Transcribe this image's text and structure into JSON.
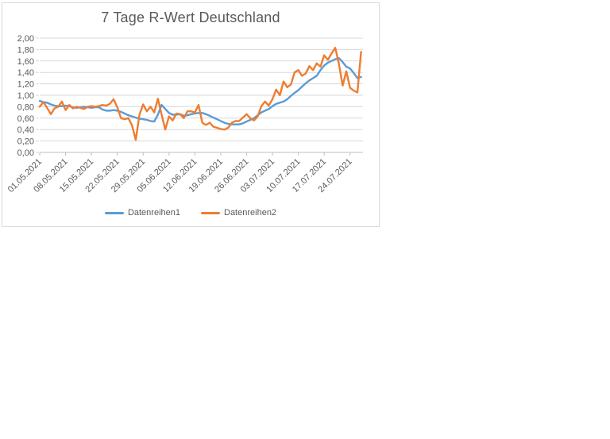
{
  "chart_data": {
    "type": "line",
    "title": "7 Tage R-Wert Deutschland",
    "x_start": "01.05.2021",
    "x_end": "27.07.2021",
    "x_interval": "daily",
    "x_tick_labels": [
      "01.05.2021",
      "08.05.2021",
      "15.05.2021",
      "22.05.2021",
      "29.05.2021",
      "05.06.2021",
      "12.06.2021",
      "19.06.2021",
      "26.06.2021",
      "03.07.2021",
      "10.07.2021",
      "17.07.2021",
      "24.07.2021"
    ],
    "y_tick_labels": [
      "2,00",
      "1,80",
      "1,60",
      "1,40",
      "1,20",
      "1,00",
      "0,80",
      "0,60",
      "0,40",
      "0,20",
      "0,00"
    ],
    "ylim": [
      0,
      2
    ],
    "y_tick_step": 0.2,
    "grid": "horizontal-only",
    "legend_position": "bottom-center",
    "colors": {
      "gridline": "#D9D9D9",
      "axis_line": "#BFBFBF",
      "tick_text": "#595959",
      "title_text": "#595959",
      "frame_border": "#D9D9D9",
      "background": "#FFFFFF"
    },
    "series": [
      {
        "name": "Datenreihen1",
        "color": "#5B9BD5",
        "values": [
          0.9,
          0.88,
          0.87,
          0.84,
          0.82,
          0.81,
          0.81,
          0.82,
          0.81,
          0.79,
          0.78,
          0.79,
          0.8,
          0.79,
          0.78,
          0.79,
          0.79,
          0.75,
          0.73,
          0.73,
          0.74,
          0.73,
          0.71,
          0.68,
          0.65,
          0.63,
          0.61,
          0.59,
          0.58,
          0.57,
          0.55,
          0.54,
          0.66,
          0.83,
          0.76,
          0.69,
          0.66,
          0.66,
          0.67,
          0.64,
          0.65,
          0.67,
          0.68,
          0.69,
          0.69,
          0.67,
          0.64,
          0.61,
          0.58,
          0.55,
          0.52,
          0.5,
          0.49,
          0.49,
          0.49,
          0.51,
          0.54,
          0.57,
          0.6,
          0.65,
          0.7,
          0.73,
          0.76,
          0.81,
          0.85,
          0.87,
          0.89,
          0.93,
          0.99,
          1.04,
          1.09,
          1.15,
          1.21,
          1.26,
          1.3,
          1.34,
          1.44,
          1.52,
          1.57,
          1.6,
          1.63,
          1.65,
          1.58,
          1.5,
          1.47,
          1.39,
          1.3,
          1.32
        ]
      },
      {
        "name": "Datenreihen2",
        "color": "#ED7D31",
        "values": [
          0.8,
          0.88,
          0.78,
          0.67,
          0.77,
          0.8,
          0.89,
          0.74,
          0.83,
          0.77,
          0.8,
          0.78,
          0.76,
          0.8,
          0.81,
          0.8,
          0.81,
          0.83,
          0.82,
          0.85,
          0.93,
          0.79,
          0.6,
          0.58,
          0.6,
          0.47,
          0.22,
          0.66,
          0.84,
          0.72,
          0.8,
          0.7,
          0.94,
          0.66,
          0.4,
          0.63,
          0.56,
          0.68,
          0.67,
          0.6,
          0.72,
          0.72,
          0.7,
          0.83,
          0.52,
          0.48,
          0.52,
          0.45,
          0.43,
          0.41,
          0.4,
          0.43,
          0.52,
          0.55,
          0.55,
          0.61,
          0.67,
          0.6,
          0.56,
          0.63,
          0.81,
          0.89,
          0.82,
          0.93,
          1.1,
          1.0,
          1.24,
          1.14,
          1.19,
          1.4,
          1.44,
          1.34,
          1.38,
          1.51,
          1.44,
          1.56,
          1.5,
          1.7,
          1.62,
          1.73,
          1.83,
          1.55,
          1.17,
          1.42,
          1.13,
          1.08,
          1.05,
          1.76
        ]
      }
    ]
  },
  "legend": {
    "item1": "Datenreihen1",
    "item2": "Datenreihen2"
  }
}
